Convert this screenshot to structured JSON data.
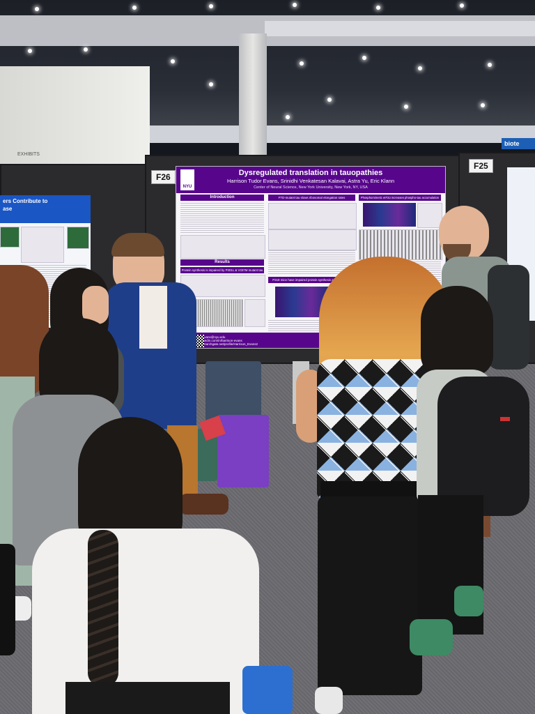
{
  "poster": {
    "title": "Dysregulated translation in tauopathies",
    "authors": "Harrison Tudor Evans, Srinidhi Venkatesan Kalavai, Astra Yu, Eric Klann",
    "affiliation": "Center of Neural Science, New York University, New York, NY, USA",
    "logo_text": "NYU",
    "section_intro": "Introduction",
    "section_results": "Results",
    "subhead_ftd": "FTD-mutant tau slows ribosomal elongation rates",
    "subhead_phospho": "Phosphomimetic eIF2α increases phospho-tau accumulation",
    "subhead_synthesis": "Protein synthesis is impaired by P301L & V337M mutant tau",
    "subhead_p319": "P319 mice have impaired protein synthesis and increased",
    "footer_lines": [
      "h.evans@nyu.edu",
      "linkedin.com/in/harrison-evans",
      "researchgate.net/profile/Harrison_Evans2"
    ],
    "board_number": "F26"
  },
  "board_right": {
    "number": "F25"
  },
  "poster_left": {
    "title_fragment": "ers Contribute to",
    "title_fragment_2": "ase"
  },
  "signage": {
    "exhibit_text": "biote",
    "wall_text": "EXHIBITS"
  },
  "colors": {
    "nyu_purple": "#57068c",
    "board": "#2b2b2e",
    "left_poster_blue": "#1a56c4"
  }
}
